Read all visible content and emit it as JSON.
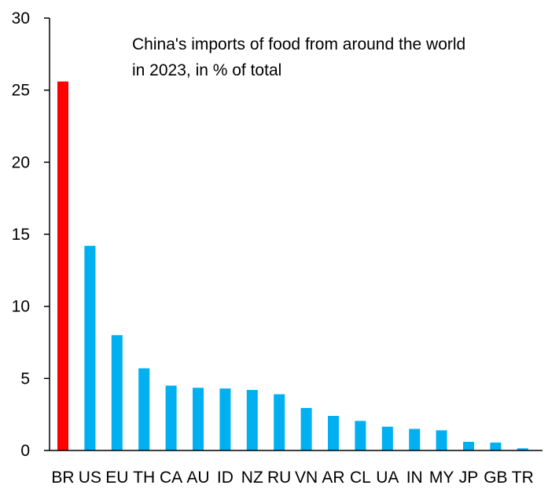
{
  "chart_data": {
    "type": "bar",
    "title_lines": [
      "China's imports of food from around the world",
      "in 2023, in % of total"
    ],
    "xlabel": "",
    "ylabel": "",
    "ylim": [
      0,
      30
    ],
    "yticks": [
      0,
      5,
      10,
      15,
      20,
      25,
      30
    ],
    "grid": false,
    "categories": [
      "BR",
      "US",
      "EU",
      "TH",
      "CA",
      "AU",
      "ID",
      "NZ",
      "RU",
      "VN",
      "AR",
      "CL",
      "UA",
      "IN",
      "MY",
      "JP",
      "GB",
      "TR"
    ],
    "values": [
      25.6,
      14.2,
      8.0,
      5.7,
      4.5,
      4.35,
      4.3,
      4.2,
      3.9,
      2.95,
      2.4,
      2.05,
      1.65,
      1.5,
      1.4,
      0.6,
      0.55,
      0.15
    ],
    "highlight_category": "BR",
    "colors": {
      "highlight": "#ff0000",
      "default": "#00b0f0",
      "axis": "#000000"
    }
  }
}
